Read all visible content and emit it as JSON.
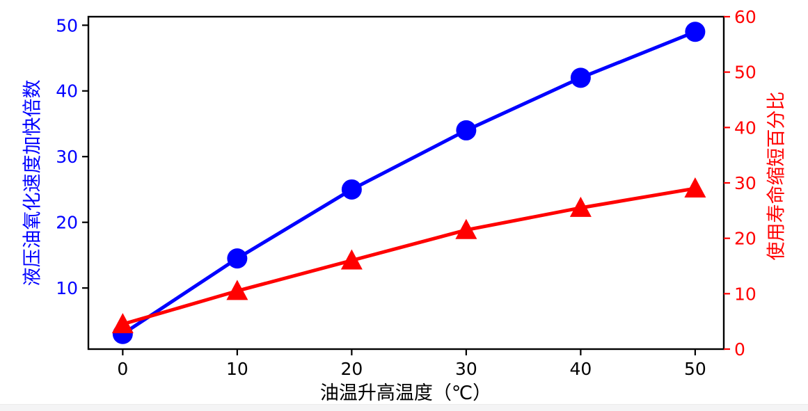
{
  "figure": {
    "background": "#ffffff",
    "bottom_strip_color": "#f4f4f5",
    "spine_color": "#000000"
  },
  "chart_data": {
    "type": "line",
    "title": "",
    "xlabel": "油温升高温度（℃）",
    "ylabel_left": "液压油氧化速度加快倍数",
    "ylabel_right": "使用寿命缩短百分比",
    "x": [
      0,
      10,
      20,
      30,
      40,
      50
    ],
    "xticks": [
      0,
      10,
      20,
      30,
      40,
      50
    ],
    "yticks_left": [
      10,
      20,
      30,
      40,
      50
    ],
    "yticks_right": [
      0,
      10,
      20,
      30,
      40,
      50,
      60
    ],
    "xlim": [
      -3,
      52.5
    ],
    "ylim_left": [
      0.7,
      51.3
    ],
    "ylim_right": [
      0,
      60
    ],
    "grid": false,
    "legend_position": "none",
    "axis_colors": {
      "left": "#0000ff",
      "right": "#ff0000",
      "x": "#000000"
    },
    "series": [
      {
        "name": "液压油氧化速度加快倍数",
        "axis": "left",
        "color": "#0000ff",
        "marker": "circle",
        "values": [
          3,
          14.5,
          25,
          34,
          42,
          49
        ]
      },
      {
        "name": "使用寿命缩短百分比",
        "axis": "right",
        "color": "#ff0000",
        "marker": "triangle-up",
        "values": [
          4.5,
          10.5,
          16,
          21.5,
          25.5,
          29
        ]
      }
    ]
  }
}
